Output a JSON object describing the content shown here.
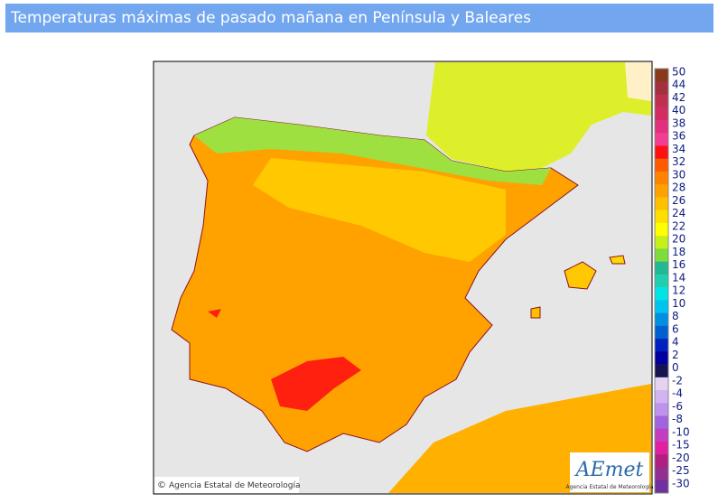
{
  "header": {
    "title": "Temperaturas máximas de pasado mañana en Península y Baleares"
  },
  "map": {
    "credit": "Agencia Estatal de Meteorología",
    "logo": {
      "name": "AEmet",
      "subtitle": "Agencia Estatal de Meteorología"
    }
  },
  "legend": {
    "entries": [
      {
        "label": "50",
        "color": "#8a3a1c"
      },
      {
        "label": "44",
        "color": "#a3303c"
      },
      {
        "label": "42",
        "color": "#bf2f4f"
      },
      {
        "label": "40",
        "color": "#d22c62"
      },
      {
        "label": "38",
        "color": "#e3307c"
      },
      {
        "label": "36",
        "color": "#f23d93"
      },
      {
        "label": "34",
        "color": "#ff1010"
      },
      {
        "label": "32",
        "color": "#ff5a00"
      },
      {
        "label": "30",
        "color": "#ff8200"
      },
      {
        "label": "28",
        "color": "#ffa200"
      },
      {
        "label": "26",
        "color": "#ffc000"
      },
      {
        "label": "24",
        "color": "#ffdf00"
      },
      {
        "label": "22",
        "color": "#ffff00"
      },
      {
        "label": "20",
        "color": "#c6f01a"
      },
      {
        "label": "18",
        "color": "#7edc3c"
      },
      {
        "label": "16",
        "color": "#22b894"
      },
      {
        "label": "14",
        "color": "#1ecfb0"
      },
      {
        "label": "12",
        "color": "#00e4e4"
      },
      {
        "label": "10",
        "color": "#00c4f0"
      },
      {
        "label": "8",
        "color": "#0090e0"
      },
      {
        "label": "6",
        "color": "#0060d0"
      },
      {
        "label": "4",
        "color": "#0020c0"
      },
      {
        "label": "2",
        "color": "#0000a0"
      },
      {
        "label": "0",
        "color": "#141450"
      },
      {
        "label": "-2",
        "color": "#e4d4f2"
      },
      {
        "label": "-4",
        "color": "#d2b4f0"
      },
      {
        "label": "-6",
        "color": "#bf92ee"
      },
      {
        "label": "-8",
        "color": "#a064e0"
      },
      {
        "label": "-10",
        "color": "#c43cc0"
      },
      {
        "label": "-15",
        "color": "#e020a0"
      },
      {
        "label": "-20",
        "color": "#b02080"
      },
      {
        "label": "-25",
        "color": "#903090"
      },
      {
        "label": "-30",
        "color": "#7030a0"
      }
    ]
  }
}
